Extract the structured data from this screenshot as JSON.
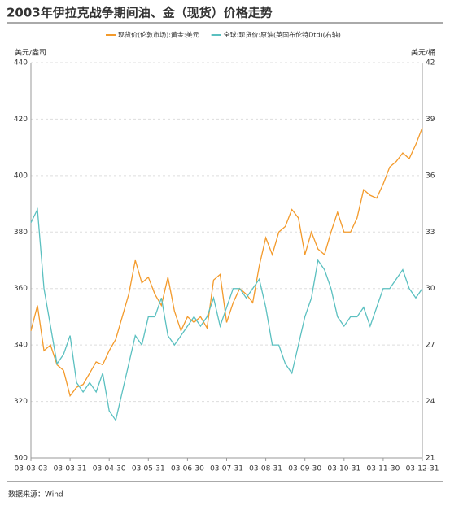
{
  "chart_data": {
    "type": "line",
    "title": "2003年伊拉克战争期间油、金（现货）价格走势",
    "y_label": "美元/盎司",
    "y2_label": "美元/桶",
    "source": "数据来源：Wind",
    "categories": [
      "03-03-03",
      null,
      null,
      null,
      null,
      null,
      "03-03-31",
      null,
      null,
      null,
      null,
      null,
      "03-04-30",
      null,
      null,
      null,
      null,
      null,
      "03-05-31",
      null,
      null,
      null,
      null,
      null,
      "03-06-30",
      null,
      null,
      null,
      null,
      null,
      "03-07-31",
      null,
      null,
      null,
      null,
      null,
      "03-08-31",
      null,
      null,
      null,
      null,
      null,
      "03-09-30",
      null,
      null,
      null,
      null,
      null,
      "03-10-31",
      null,
      null,
      null,
      null,
      null,
      "03-11-30",
      null,
      null,
      null,
      null,
      null,
      "03-12-31"
    ],
    "series": [
      {
        "name": "现货价(伦敦市场):黄金:美元",
        "color": "#f39a2b",
        "values": [
          345,
          354,
          338,
          340,
          333,
          331,
          322,
          325,
          326,
          330,
          334,
          333,
          338,
          342,
          350,
          358,
          370,
          362,
          364,
          358,
          354,
          364,
          352,
          345,
          350,
          348,
          350,
          346,
          363,
          365,
          348,
          355,
          360,
          358,
          355,
          368,
          378,
          372,
          380,
          382,
          388,
          385,
          372,
          380,
          374,
          372,
          380,
          387,
          380,
          380,
          385,
          395,
          393,
          392,
          397,
          403,
          405,
          408,
          406,
          411,
          417
        ]
      },
      {
        "name": "全球:现货价:原油(英国布伦特Dtd)(右轴)",
        "color": "#5bc0c0",
        "axis": "y2",
        "values": [
          33.5,
          34.2,
          30,
          28,
          26,
          26.5,
          27.5,
          25,
          24.5,
          25,
          24.5,
          25.5,
          23.5,
          23,
          24.5,
          26,
          27.5,
          27,
          28.5,
          28.5,
          29.5,
          27.5,
          27,
          27.5,
          28,
          28.5,
          28,
          28.5,
          29.5,
          28,
          29,
          30,
          30,
          29.5,
          30,
          30.5,
          29,
          27,
          27,
          26,
          25.5,
          27,
          28.5,
          29.5,
          31.5,
          31,
          30,
          28.5,
          28,
          28.5,
          28.5,
          29,
          28,
          29,
          30,
          30,
          30.5,
          31,
          30,
          29.5,
          30
        ]
      }
    ],
    "ylim": [
      300,
      440
    ],
    "yticks": [
      300,
      320,
      340,
      360,
      380,
      400,
      420,
      440
    ],
    "y2lim": [
      21,
      42
    ],
    "y2ticks": [
      21,
      24,
      27,
      30,
      33,
      36,
      39,
      42
    ],
    "grid": true
  }
}
